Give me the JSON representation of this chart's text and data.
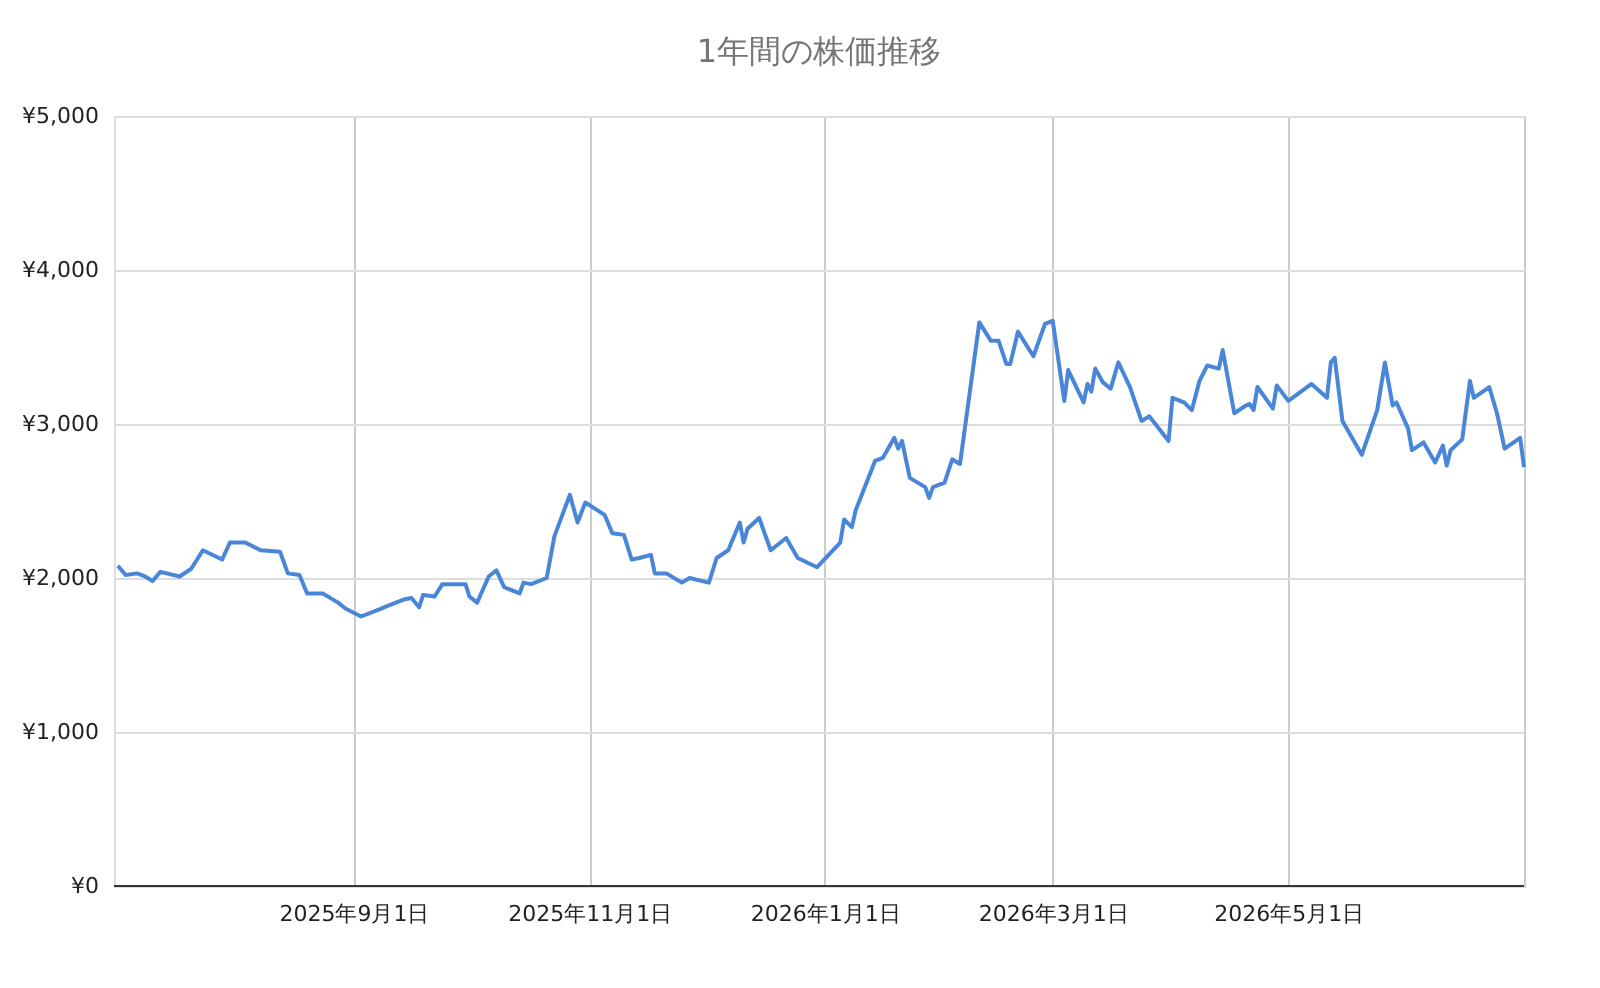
{
  "chart_data": {
    "type": "line",
    "title": "1年間の株価推移",
    "x": [
      "2025-07-02",
      "2025-07-04",
      "2025-07-07",
      "2025-07-09",
      "2025-07-11",
      "2025-07-13",
      "2025-07-18",
      "2025-07-21",
      "2025-07-24",
      "2025-07-29",
      "2025-07-31",
      "2025-08-04",
      "2025-08-08",
      "2025-08-13",
      "2025-08-15",
      "2025-08-18",
      "2025-08-20",
      "2025-08-24",
      "2025-08-28",
      "2025-08-30",
      "2025-09-03",
      "2025-09-08",
      "2025-09-10",
      "2025-09-14",
      "2025-09-16",
      "2025-09-18",
      "2025-09-19",
      "2025-09-22",
      "2025-09-24",
      "2025-09-30",
      "2025-10-01",
      "2025-10-03",
      "2025-10-06",
      "2025-10-08",
      "2025-10-10",
      "2025-10-14",
      "2025-10-15",
      "2025-10-17",
      "2025-10-21",
      "2025-10-23",
      "2025-10-27",
      "2025-10-29",
      "2025-10-31",
      "2025-11-05",
      "2025-11-07",
      "2025-11-10",
      "2025-11-12",
      "2025-11-14",
      "2025-11-17",
      "2025-11-18",
      "2025-11-21",
      "2025-11-25",
      "2025-11-27",
      "2025-12-02",
      "2025-12-04",
      "2025-12-07",
      "2025-12-10",
      "2025-12-11",
      "2025-12-12",
      "2025-12-15",
      "2025-12-18",
      "2025-12-22",
      "2025-12-25",
      "2025-12-30",
      "2026-01-05",
      "2026-01-06",
      "2026-01-08",
      "2026-01-09",
      "2026-01-14",
      "2026-01-16",
      "2026-01-19",
      "2026-01-20",
      "2026-01-21",
      "2026-01-23",
      "2026-01-27",
      "2026-01-28",
      "2026-01-29",
      "2026-02-01",
      "2026-02-03",
      "2026-02-05",
      "2026-02-10",
      "2026-02-13",
      "2026-02-15",
      "2026-02-17",
      "2026-02-18",
      "2026-02-20",
      "2026-02-24",
      "2026-02-27",
      "2026-03-01",
      "2026-03-04",
      "2026-03-05",
      "2026-03-09",
      "2026-03-10",
      "2026-03-11",
      "2026-03-12",
      "2026-03-14",
      "2026-03-16",
      "2026-03-18",
      "2026-03-21",
      "2026-03-24",
      "2026-03-26",
      "2026-03-31",
      "2026-04-01",
      "2026-04-04",
      "2026-04-06",
      "2026-04-08",
      "2026-04-10",
      "2026-04-13",
      "2026-04-14",
      "2026-04-17",
      "2026-04-20",
      "2026-04-21",
      "2026-04-22",
      "2026-04-23",
      "2026-04-27",
      "2026-04-28",
      "2026-05-01",
      "2026-05-07",
      "2026-05-11",
      "2026-05-12",
      "2026-05-13",
      "2026-05-15",
      "2026-05-20",
      "2026-05-24",
      "2026-05-26",
      "2026-05-28",
      "2026-05-29",
      "2026-06-01",
      "2026-06-02",
      "2026-06-05",
      "2026-06-08",
      "2026-06-10",
      "2026-06-11",
      "2026-06-12",
      "2026-06-15",
      "2026-06-17",
      "2026-06-18",
      "2026-06-22",
      "2026-06-24",
      "2026-06-26",
      "2026-06-30",
      "2026-07-01"
    ],
    "series": [
      {
        "color": "#4a86d8",
        "values": [
          2080,
          2020,
          2030,
          2010,
          1980,
          2040,
          2010,
          2060,
          2180,
          2120,
          2230,
          2230,
          2180,
          2170,
          2030,
          2020,
          1900,
          1900,
          1840,
          1800,
          1750,
          1800,
          1820,
          1860,
          1870,
          1810,
          1890,
          1880,
          1960,
          1960,
          1880,
          1840,
          2010,
          2050,
          1940,
          1900,
          1970,
          1960,
          2000,
          2270,
          2540,
          2360,
          2490,
          2410,
          2290,
          2280,
          2120,
          2130,
          2150,
          2030,
          2030,
          1970,
          2000,
          1970,
          2130,
          2180,
          2360,
          2230,
          2320,
          2390,
          2180,
          2260,
          2130,
          2070,
          2230,
          2380,
          2330,
          2440,
          2760,
          2780,
          2910,
          2840,
          2890,
          2650,
          2590,
          2520,
          2590,
          2620,
          2770,
          2740,
          3660,
          3540,
          3540,
          3390,
          3390,
          3600,
          3440,
          3650,
          3670,
          3150,
          3350,
          3140,
          3260,
          3210,
          3360,
          3270,
          3230,
          3400,
          3240,
          3020,
          3050,
          2890,
          3170,
          3140,
          3090,
          3280,
          3380,
          3360,
          3480,
          3070,
          3120,
          3130,
          3090,
          3240,
          3100,
          3250,
          3150,
          3260,
          3170,
          3400,
          3430,
          3020,
          2800,
          3090,
          3400,
          3120,
          3140,
          2970,
          2830,
          2880,
          2750,
          2860,
          2730,
          2830,
          2900,
          3280,
          3170,
          3240,
          3070,
          2840,
          2910,
          2720
        ]
      }
    ],
    "xlim": [
      "2025-07-01",
      "2026-07-01"
    ],
    "xticks": [
      {
        "value": "2025-09-01",
        "label": "2025年9月1日"
      },
      {
        "value": "2025-11-01",
        "label": "2025年11月1日"
      },
      {
        "value": "2026-01-01",
        "label": "2026年1月1日"
      },
      {
        "value": "2026-03-01",
        "label": "2026年3月1日"
      },
      {
        "value": "2026-05-01",
        "label": "2026年5月1日"
      },
      {
        "value": "2026-07-01",
        "label": null
      }
    ],
    "ylim": [
      0,
      5000
    ],
    "yticks": [
      {
        "value": 0,
        "label": "¥0"
      },
      {
        "value": 1000,
        "label": "¥1,000"
      },
      {
        "value": 2000,
        "label": "¥2,000"
      },
      {
        "value": 3000,
        "label": "¥3,000"
      },
      {
        "value": 4000,
        "label": "¥4,000"
      },
      {
        "value": 5000,
        "label": "¥5,000"
      }
    ],
    "grid": true,
    "line_style": "solid",
    "marker": "none"
  }
}
